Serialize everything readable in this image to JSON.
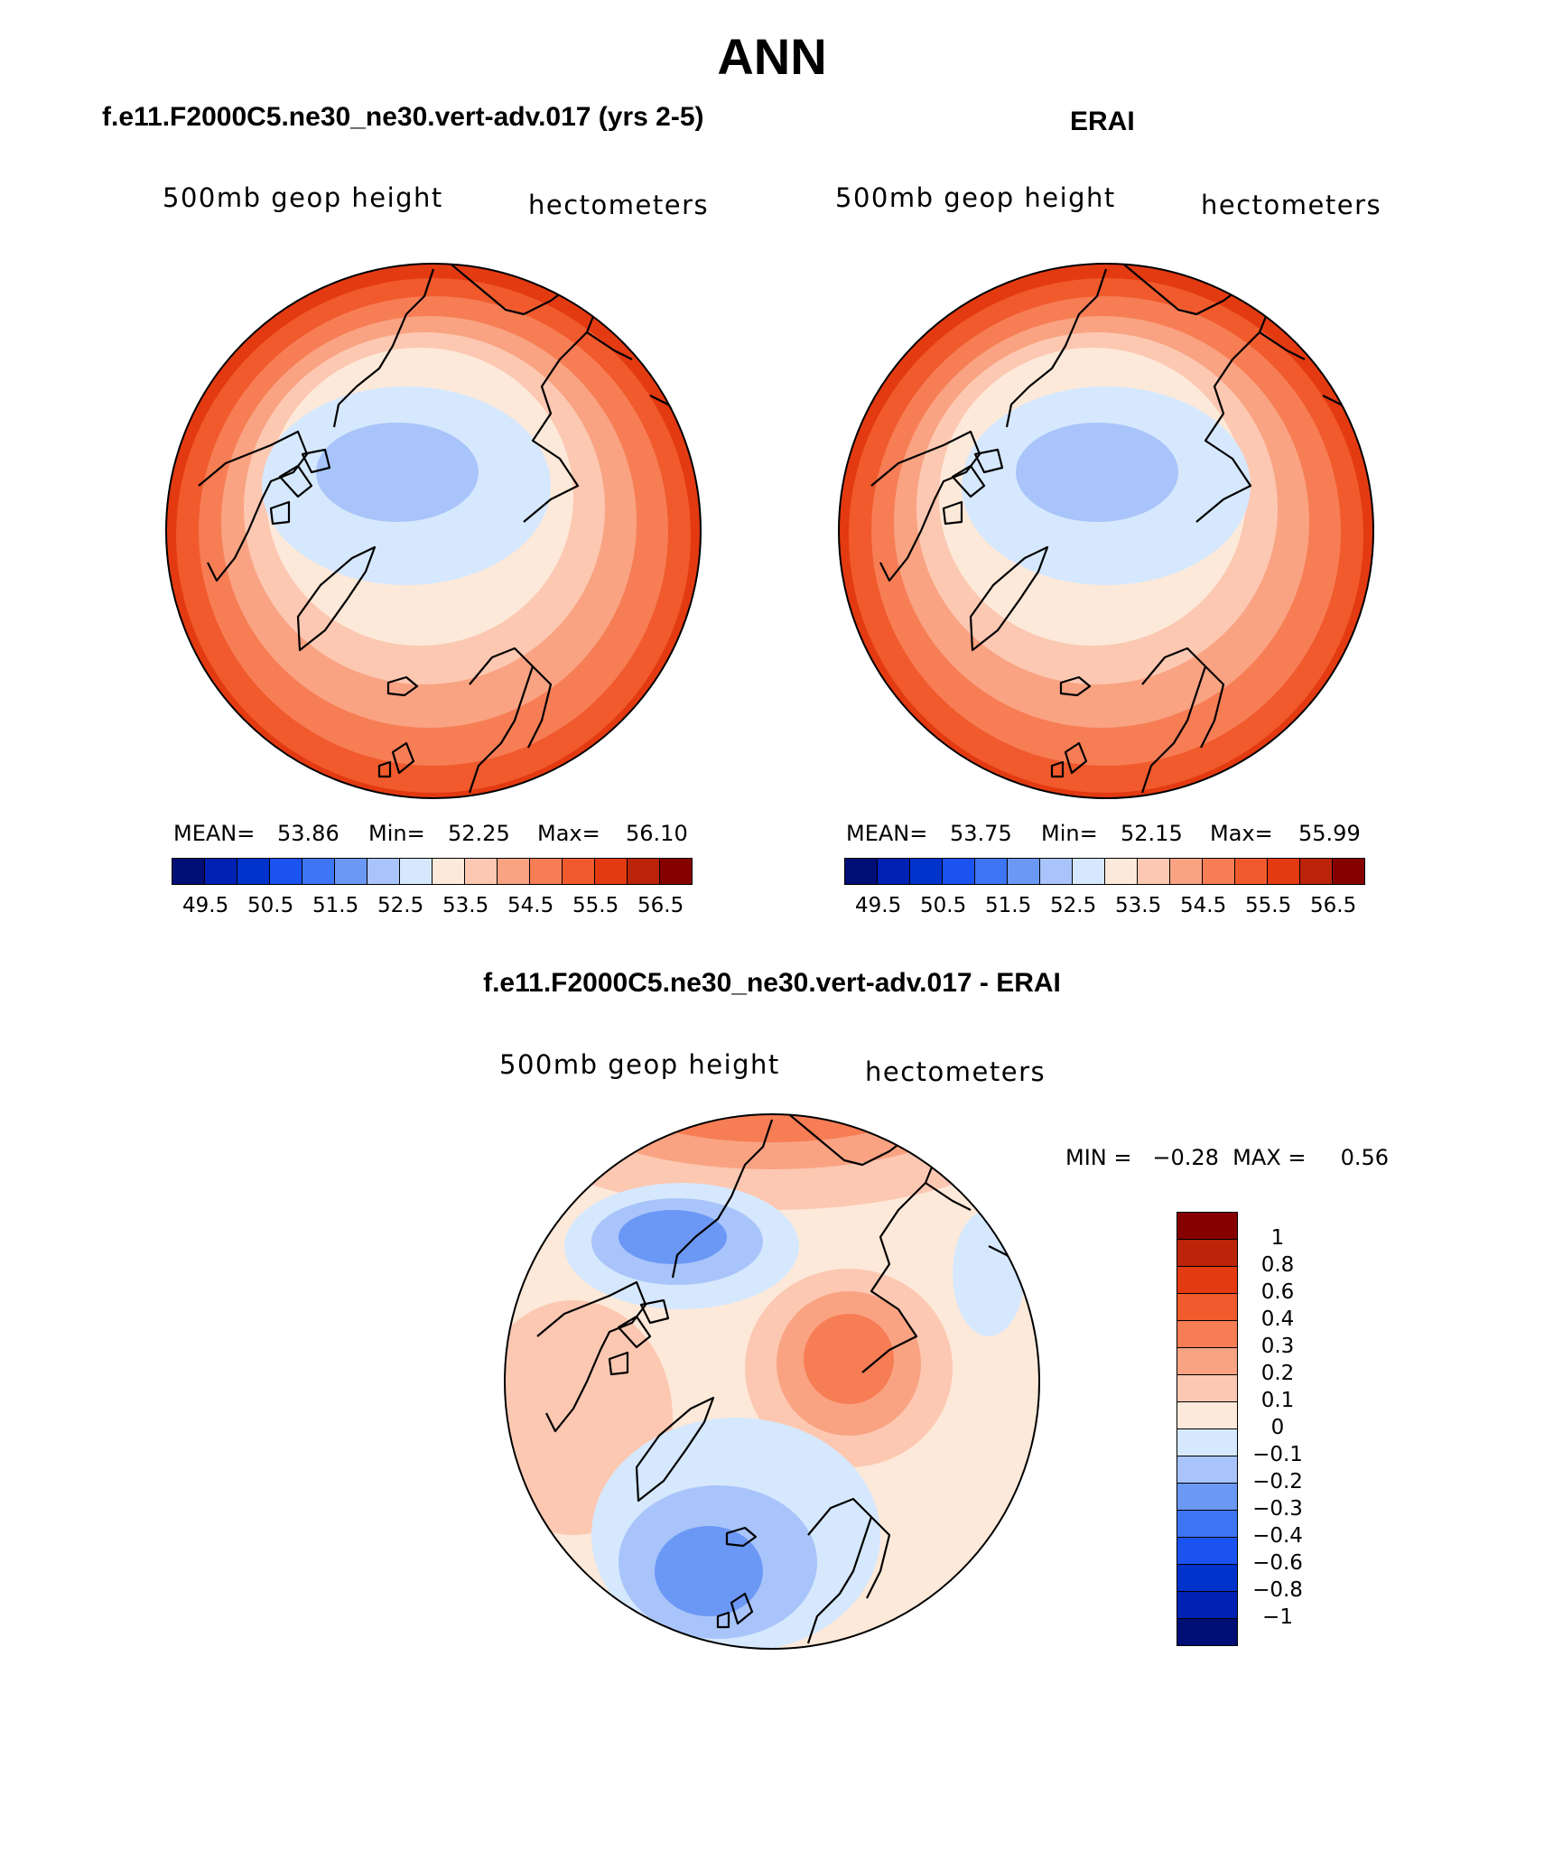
{
  "figure": {
    "title": "ANN"
  },
  "panels": [
    {
      "id": "model",
      "title": "f.e11.F2000C5.ne30_ne30.vert-adv.017 (yrs 2-5)",
      "left_label": "500mb  geop  height",
      "right_label": "hectometers",
      "stats": {
        "mean_label": "MEAN=",
        "mean": "53.86",
        "min_label": "Min=",
        "min": "52.25",
        "max_label": "Max=",
        "max": "56.10"
      }
    },
    {
      "id": "obs",
      "title": "ERAI",
      "left_label": "500mb  geop  height",
      "right_label": "hectometers",
      "stats": {
        "mean_label": "MEAN=",
        "mean": "53.75",
        "min_label": "Min=",
        "min": "52.15",
        "max_label": "Max=",
        "max": "55.99"
      }
    },
    {
      "id": "diff",
      "title": "f.e11.F2000C5.ne30_ne30.vert-adv.017 - ERAI",
      "left_label": "500mb  geop  height",
      "right_label": "hectometers",
      "minmax_text": "MIN =   −0.28  MAX =     0.56"
    }
  ],
  "colorbar_abs": {
    "colors": [
      "#000e75",
      "#0021b3",
      "#0033cc",
      "#1a53f0",
      "#3d75f5",
      "#6b97f5",
      "#a8c4fa",
      "#d6e8fd",
      "#fde9d9",
      "#fcc8b2",
      "#f9a382",
      "#f77d55",
      "#f05a2c",
      "#e33a12",
      "#bb2408",
      "#870000"
    ],
    "tick_labels": [
      "49.5",
      "50.5",
      "51.5",
      "52.5",
      "53.5",
      "54.5",
      "55.5",
      "56.5"
    ]
  },
  "colorbar_diff": {
    "colors": [
      "#870000",
      "#bb2408",
      "#e33a12",
      "#f05a2c",
      "#f77d55",
      "#f9a382",
      "#fcc8b2",
      "#fde9d9",
      "#d6e8fd",
      "#a8c4fa",
      "#6b97f5",
      "#3d75f5",
      "#1a53f0",
      "#0033cc",
      "#0021b3",
      "#000e75"
    ],
    "tick_labels": [
      "1",
      "0.8",
      "0.6",
      "0.4",
      "0.3",
      "0.2",
      "0.1",
      "0",
      "−0.1",
      "−0.2",
      "−0.3",
      "−0.4",
      "−0.6",
      "−0.8",
      "−1"
    ]
  },
  "map_colors": {
    "r1": "#fde9d9",
    "r2": "#fcc8b2",
    "r3": "#f9a382",
    "r4": "#f77d55",
    "r5": "#f05a2c",
    "r6": "#e33a12",
    "b1": "#d6e8fd",
    "b2": "#a8c4fa",
    "b3": "#6b97f5"
  }
}
